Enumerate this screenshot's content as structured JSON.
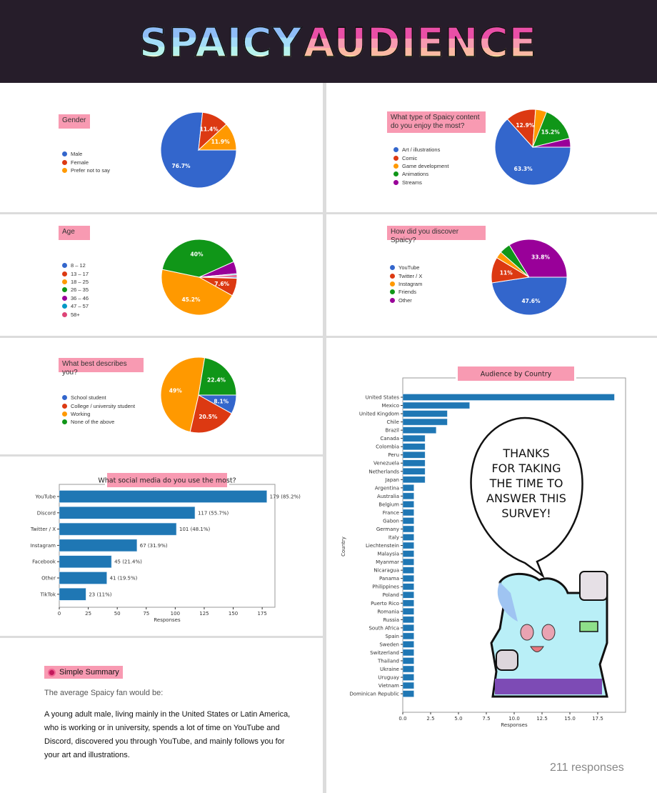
{
  "header": {
    "title_part1": "SPAICY",
    "title_part2": "AUDIENCE"
  },
  "colors": {
    "blue": "#3366cc",
    "red": "#dc3912",
    "orange": "#ff9900",
    "green": "#109618",
    "purple": "#990099",
    "teal": "#0099c6",
    "pink": "#dd4477",
    "bar": "#1f77b4",
    "label_bg": "#f89ab2"
  },
  "chart_data": [
    {
      "id": "gender",
      "type": "pie",
      "title": "Gender",
      "labels": [
        "Male",
        "Female",
        "Prefer not to say"
      ],
      "values": [
        76.7,
        11.4,
        11.9
      ],
      "value_labels": [
        "76.7%",
        "11.4%",
        "11.9%"
      ],
      "colors": [
        "#3366cc",
        "#dc3912",
        "#ff9900"
      ]
    },
    {
      "id": "content",
      "type": "pie",
      "title": "What type of Spaicy content do you enjoy the most?",
      "labels": [
        "Art / illustrations",
        "Comic",
        "Game development",
        "Animations",
        "Streams"
      ],
      "values": [
        63.3,
        12.9,
        4.8,
        15.2,
        3.8
      ],
      "value_labels": [
        "63.3%",
        "12.9%",
        "",
        "15.2%",
        ""
      ],
      "colors": [
        "#3366cc",
        "#dc3912",
        "#ff9900",
        "#109618",
        "#990099"
      ]
    },
    {
      "id": "age",
      "type": "pie",
      "title": "Age",
      "labels": [
        "8 – 12",
        "13 – 17",
        "18 – 25",
        "26 – 35",
        "36 – 46",
        "47 – 57",
        "58+"
      ],
      "values": [
        0.5,
        7.6,
        45.2,
        40,
        5.2,
        0.5,
        1.0
      ],
      "value_labels": [
        "",
        "7.6%",
        "45.2%",
        "40%",
        "",
        "",
        ""
      ],
      "colors": [
        "#3366cc",
        "#dc3912",
        "#ff9900",
        "#109618",
        "#990099",
        "#0099c6",
        "#dd4477"
      ]
    },
    {
      "id": "discover",
      "type": "pie",
      "title": "How did you discover Spaicy?",
      "labels": [
        "YouTube",
        "Twitter / X",
        "Instagram",
        "Friends",
        "Other"
      ],
      "values": [
        47.6,
        11,
        2.9,
        4.7,
        33.8
      ],
      "value_labels": [
        "47.6%",
        "11%",
        "",
        "",
        "33.8%"
      ],
      "colors": [
        "#3366cc",
        "#dc3912",
        "#ff9900",
        "#109618",
        "#990099"
      ]
    },
    {
      "id": "describes",
      "type": "pie",
      "title": "What best describes you?",
      "labels": [
        "School student",
        "College / university student",
        "Working",
        "None of the above"
      ],
      "values": [
        8.1,
        20.5,
        49,
        22.4
      ],
      "value_labels": [
        "8.1%",
        "20.5%",
        "49%",
        "22.4%"
      ],
      "colors": [
        "#3366cc",
        "#dc3912",
        "#ff9900",
        "#109618"
      ]
    },
    {
      "id": "social",
      "type": "bar",
      "orientation": "horizontal",
      "title": "What social media do you use the most?",
      "categories": [
        "YouTube",
        "Discord",
        "Twitter / X",
        "Instagram",
        "Facebook",
        "Other",
        "TikTok"
      ],
      "values": [
        179,
        117,
        101,
        67,
        45,
        41,
        23
      ],
      "value_labels": [
        "179 (85.2%)",
        "117 (55.7%)",
        "101 (48.1%)",
        "67 (31.9%)",
        "45 (21.4%)",
        "41 (19.5%)",
        "23 (11%)"
      ],
      "xlabel": "Responses",
      "ylabel": "",
      "xlim": [
        0,
        186
      ],
      "xticks": [
        "0",
        "25",
        "50",
        "75",
        "100",
        "125",
        "150",
        "175"
      ]
    },
    {
      "id": "country",
      "type": "bar",
      "orientation": "horizontal",
      "title": "Audience by Country",
      "categories": [
        "United States",
        "Mexico",
        "United Kingdom",
        "Chile",
        "Brazil",
        "Canada",
        "Colombia",
        "Peru",
        "Venezuela",
        "Netherlands",
        "Japan",
        "Argentina",
        "Australia",
        "Belgium",
        "France",
        "Gabon",
        "Germany",
        "Italy",
        "Liechtenstein",
        "Malaysia",
        "Myanmar",
        "Nicaragua",
        "Panama",
        "Philippines",
        "Poland",
        "Puerto Rico",
        "Romania",
        "Russia",
        "South Africa",
        "Spain",
        "Sweden",
        "Switzerland",
        "Thailand",
        "Ukraine",
        "Uruguay",
        "Vietnam",
        "Dominican Republic"
      ],
      "values": [
        19,
        6,
        4,
        4,
        3,
        2,
        2,
        2,
        2,
        2,
        2,
        1,
        1,
        1,
        1,
        1,
        1,
        1,
        1,
        1,
        1,
        1,
        1,
        1,
        1,
        1,
        1,
        1,
        1,
        1,
        1,
        1,
        1,
        1,
        1,
        1,
        1
      ],
      "xlabel": "Responses",
      "ylabel": "Country",
      "xlim": [
        0,
        20
      ],
      "xticks": [
        "0.0",
        "2.5",
        "5.0",
        "7.5",
        "10.0",
        "12.5",
        "15.0",
        "17.5"
      ]
    }
  ],
  "speech_bubble": {
    "lines": [
      "THANKS",
      "FOR TAKING",
      "THE TIME TO",
      "ANSWER THIS",
      "SURVEY!"
    ]
  },
  "summary": {
    "title": "Simple Summary",
    "intro": "The average Spaicy fan would be:",
    "body": "A young adult male, living mainly in the United States or Latin America, who is working or in university,  spends a lot of time on YouTube and Discord, discovered you through YouTube, and mainly follows you for your art and illustrations."
  },
  "footer": {
    "responses": "211 responses"
  }
}
